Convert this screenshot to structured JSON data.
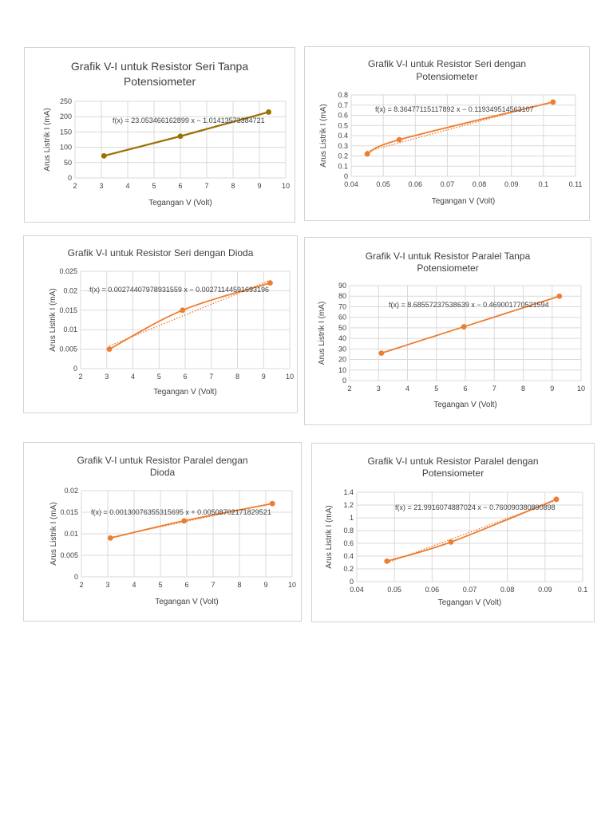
{
  "chart_data": [
    {
      "type": "scatter",
      "title": "Grafik V-I untuk Resistor Seri Tanpa Potensiometer",
      "title_lines": [
        "Grafik V-I untuk Resistor Seri Tanpa",
        "Potensiometer"
      ],
      "xlabel": "Tegangan V (Volt)",
      "ylabel": "Arus Listrik I (mA)",
      "xlim": [
        2,
        10
      ],
      "ylim": [
        0,
        250
      ],
      "xticks": [
        "2",
        "3",
        "4",
        "5",
        "6",
        "7",
        "8",
        "9",
        "10"
      ],
      "yticks": [
        "0",
        "50",
        "100",
        "150",
        "200",
        "250"
      ],
      "x": [
        3.1,
        6.0,
        9.35
      ],
      "y": [
        72,
        136,
        215
      ],
      "trendline": "linear",
      "equation": "f(x) = 23.053466162899 x − 1.01413573384721",
      "colors": {
        "series": "#9c6f00",
        "trend": "#6b6b2a"
      }
    },
    {
      "type": "scatter",
      "title": "Grafik V-I untuk Resistor Seri dengan Potensiometer",
      "title_lines": [
        "Grafik V-I untuk Resistor Seri dengan",
        "Potensiometer"
      ],
      "xlabel": "Tegangan V (Volt)",
      "ylabel": "Arus Listrik I (mA)",
      "xlim": [
        0.04,
        0.11
      ],
      "ylim": [
        0,
        0.8
      ],
      "xticks": [
        "0.04",
        "0.05",
        "0.06",
        "0.07",
        "0.08",
        "0.09",
        "0.1",
        "0.11"
      ],
      "yticks": [
        "0",
        "0.1",
        "0.2",
        "0.3",
        "0.4",
        "0.5",
        "0.6",
        "0.7",
        "0.8"
      ],
      "x": [
        0.045,
        0.055,
        0.103
      ],
      "y": [
        0.22,
        0.36,
        0.73
      ],
      "trendline": "linear",
      "equation": "f(x) = 8.36477115117892 x − 0.119349514563107",
      "colors": {
        "series": "#ed7d31",
        "trend": "#ed7d31"
      }
    },
    {
      "type": "scatter",
      "title": "Grafik V-I untuk Resistor Seri dengan Dioda",
      "title_lines": [
        "Grafik V-I untuk Resistor Seri dengan Dioda"
      ],
      "xlabel": "Tegangan V (Volt)",
      "ylabel": "Arus Listrik I (mA)",
      "xlim": [
        2,
        10
      ],
      "ylim": [
        0,
        0.025
      ],
      "xticks": [
        "2",
        "3",
        "4",
        "5",
        "6",
        "7",
        "8",
        "9",
        "10"
      ],
      "yticks": [
        "0",
        "0.005",
        "0.01",
        "0.015",
        "0.02",
        "0.025"
      ],
      "x": [
        3.1,
        5.9,
        9.25
      ],
      "y": [
        0.005,
        0.015,
        0.022
      ],
      "trendline": "linear",
      "equation": "f(x) = 0.00274407978931559 x − 0.00271144591693196",
      "colors": {
        "series": "#ed7d31",
        "trend": "#ed7d31"
      }
    },
    {
      "type": "scatter",
      "title": "Grafik V-I untuk Resistor Paralel Tanpa Potensiometer",
      "title_lines": [
        "Grafik V-I untuk Resistor Paralel Tanpa",
        "Potensiometer"
      ],
      "xlabel": "Tegangan V (Volt)",
      "ylabel": "Arus Listrik I (mA)",
      "xlim": [
        2,
        10
      ],
      "ylim": [
        0,
        90
      ],
      "xticks": [
        "2",
        "3",
        "4",
        "5",
        "6",
        "7",
        "8",
        "9",
        "10"
      ],
      "yticks": [
        "0",
        "10",
        "20",
        "30",
        "40",
        "50",
        "60",
        "70",
        "80",
        "90"
      ],
      "x": [
        3.1,
        5.95,
        9.25
      ],
      "y": [
        26,
        51,
        80
      ],
      "trendline": "linear",
      "equation": "f(x) = 8.68557237538639 x − 0.469001770521594",
      "colors": {
        "series": "#ed7d31",
        "trend": "#ed7d31"
      }
    },
    {
      "type": "scatter",
      "title": "Grafik V-I untuk Resistor Paralel dengan Dioda",
      "title_lines": [
        "Grafik V-I untuk Resistor Paralel dengan",
        "Dioda"
      ],
      "xlabel": "Tegangan V (Volt)",
      "ylabel": "Arus Listrik I (mA)",
      "xlim": [
        2,
        10
      ],
      "ylim": [
        0,
        0.02
      ],
      "xticks": [
        "2",
        "3",
        "4",
        "5",
        "6",
        "7",
        "8",
        "9",
        "10"
      ],
      "yticks": [
        "0",
        "0.005",
        "0.01",
        "0.015",
        "0.02"
      ],
      "x": [
        3.1,
        5.9,
        9.25
      ],
      "y": [
        0.009,
        0.013,
        0.017
      ],
      "trendline": "linear",
      "equation": "f(x) = 0.00130076355315695 x + 0.00508702171829521",
      "colors": {
        "series": "#ed7d31",
        "trend": "#ed7d31"
      }
    },
    {
      "type": "scatter",
      "title": "Grafik V-I untuk Resistor Paralel dengan Potensiometer",
      "title_lines": [
        "Grafik V-I untuk Resistor Paralel dengan",
        "Potensiometer"
      ],
      "xlabel": "Tegangan V (Volt)",
      "ylabel": "Arus Listrik I (mA)",
      "xlim": [
        0.04,
        0.1
      ],
      "ylim": [
        0,
        1.4
      ],
      "xticks": [
        "0.04",
        "0.05",
        "0.06",
        "0.07",
        "0.08",
        "0.09",
        "0.1"
      ],
      "yticks": [
        "0",
        "0.2",
        "0.4",
        "0.6",
        "0.8",
        "1",
        "1.2",
        "1.4"
      ],
      "x": [
        0.048,
        0.065,
        0.093
      ],
      "y": [
        0.32,
        0.62,
        1.29
      ],
      "trendline": "linear",
      "equation": "f(x) = 21.9916074887024 x − 0.760090380890898",
      "colors": {
        "series": "#ed7d31",
        "trend": "#ed7d31"
      }
    }
  ]
}
